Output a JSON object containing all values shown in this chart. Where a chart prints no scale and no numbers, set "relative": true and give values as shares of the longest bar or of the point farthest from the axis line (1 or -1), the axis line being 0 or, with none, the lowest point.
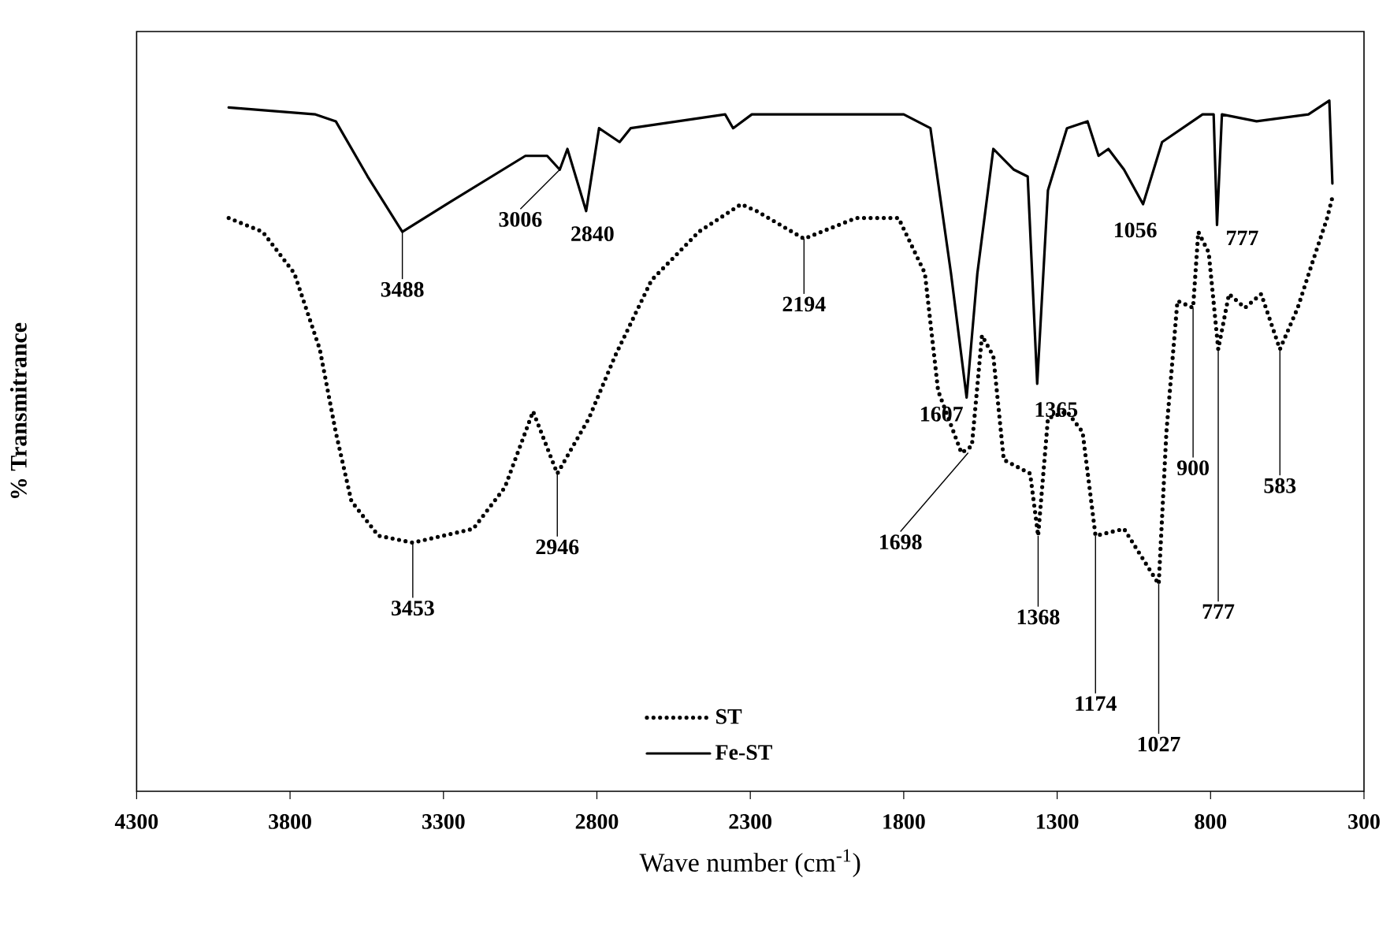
{
  "chart_data": {
    "type": "line",
    "relative": true,
    "xlabel": "Wave number (cm$^{-1}$)",
    "ylabel": "% Transmitrance",
    "xlim": [
      4300,
      300
    ],
    "xticks": [
      4300,
      3800,
      3300,
      2800,
      2300,
      1800,
      1300,
      800,
      300
    ],
    "legend": "bottom",
    "series": [
      {
        "name": "ST",
        "color": "#000000",
        "line_style": "dotted",
        "x": [
          4000,
          3889,
          3786,
          3703,
          3651,
          3600,
          3512,
          3400,
          3203,
          3100,
          3008,
          2929,
          2826,
          2741,
          2622,
          2468,
          2330,
          2279,
          2125,
          1955,
          1817,
          1731,
          1688,
          1612,
          1578,
          1545,
          1508,
          1474,
          1388,
          1362,
          1330,
          1268,
          1217,
          1175,
          1082,
          969,
          944,
          908,
          857,
          840,
          806,
          775,
          740,
          688,
          635,
          574,
          516,
          465,
          420,
          403
        ],
        "values": [
          0.83,
          0.81,
          0.75,
          0.64,
          0.52,
          0.42,
          0.37,
          0.36,
          0.38,
          0.44,
          0.55,
          0.46,
          0.54,
          0.63,
          0.74,
          0.81,
          0.85,
          0.84,
          0.8,
          0.83,
          0.83,
          0.75,
          0.58,
          0.49,
          0.5,
          0.66,
          0.63,
          0.48,
          0.46,
          0.37,
          0.54,
          0.55,
          0.52,
          0.37,
          0.38,
          0.3,
          0.52,
          0.71,
          0.7,
          0.81,
          0.78,
          0.64,
          0.72,
          0.7,
          0.72,
          0.64,
          0.7,
          0.77,
          0.83,
          0.86
        ]
      },
      {
        "name": "Fe-ST",
        "color": "#000000",
        "line_style": "solid",
        "x": [
          4000,
          3717,
          3651,
          3547,
          3434,
          3290,
          3033,
          2962,
          2921,
          2896,
          2835,
          2793,
          2726,
          2690,
          2382,
          2356,
          2295,
          2279,
          1800,
          1713,
          1646,
          1595,
          1560,
          1508,
          1441,
          1396,
          1365,
          1330,
          1268,
          1201,
          1165,
          1133,
          1082,
          1020,
          958,
          826,
          790,
          779,
          763,
          650,
          481,
          413,
          403
        ],
        "values": [
          0.99,
          0.98,
          0.97,
          0.89,
          0.81,
          0.85,
          0.92,
          0.92,
          0.9,
          0.93,
          0.84,
          0.96,
          0.94,
          0.96,
          0.98,
          0.96,
          0.98,
          0.98,
          0.98,
          0.96,
          0.75,
          0.57,
          0.75,
          0.93,
          0.9,
          0.89,
          0.59,
          0.87,
          0.96,
          0.97,
          0.92,
          0.93,
          0.9,
          0.85,
          0.94,
          0.98,
          0.98,
          0.82,
          0.98,
          0.97,
          0.98,
          1.0,
          0.88
        ]
      }
    ],
    "annotations": [
      {
        "text": "3488",
        "x": 3434,
        "y": 0.81
      },
      {
        "text": "3006",
        "x": 2921,
        "y": 0.9
      },
      {
        "text": "2840",
        "x": 2835,
        "y": 0.84
      },
      {
        "text": "1607",
        "x": 1595,
        "y": 0.57
      },
      {
        "text": "1365",
        "x": 1365,
        "y": 0.59
      },
      {
        "text": "1056",
        "x": 1020,
        "y": 0.85
      },
      {
        "text": "777",
        "x": 779,
        "y": 0.82
      },
      {
        "text": "3453",
        "x": 3400,
        "y": 0.36
      },
      {
        "text": "2946",
        "x": 2929,
        "y": 0.46
      },
      {
        "text": "2194",
        "x": 2125,
        "y": 0.8
      },
      {
        "text": "1698",
        "x": 1590,
        "y": 0.49
      },
      {
        "text": "1368",
        "x": 1362,
        "y": 0.37
      },
      {
        "text": "1174",
        "x": 1175,
        "y": 0.37
      },
      {
        "text": "1027",
        "x": 969,
        "y": 0.3
      },
      {
        "text": "900",
        "x": 857,
        "y": 0.7
      },
      {
        "text": "777",
        "x": 775,
        "y": 0.64
      },
      {
        "text": "583",
        "x": 574,
        "y": 0.64
      }
    ]
  }
}
